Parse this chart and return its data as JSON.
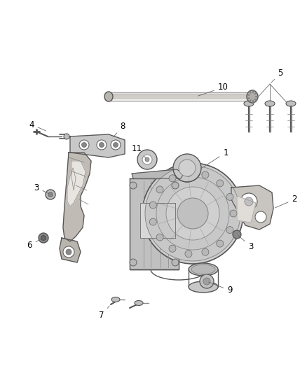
{
  "background_color": "#ffffff",
  "fig_width": 4.38,
  "fig_height": 5.33,
  "dpi": 100,
  "line_color": "#555555",
  "label_color": "#000000",
  "label_fontsize": 8.5,
  "gray_fill": "#c8c8c8",
  "light_gray": "#d8d8d8",
  "mid_gray": "#b0b0b0",
  "dark_line": "#333333"
}
